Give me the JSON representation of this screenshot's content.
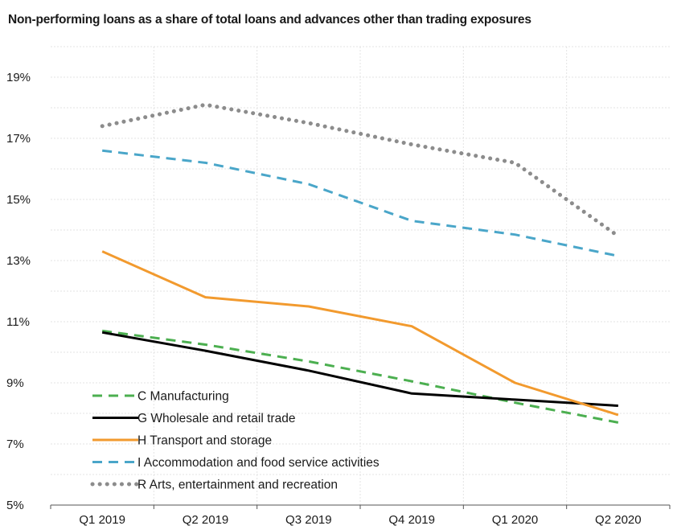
{
  "chart_data": {
    "type": "line",
    "title": "Non-performing loans as a share of total loans and advances other than trading exposures",
    "xlabel": "",
    "ylabel": "",
    "categories": [
      "Q1 2019",
      "Q2 2019",
      "Q3 2019",
      "Q4 2019",
      "Q1 2020",
      "Q2 2020"
    ],
    "y_ticks": [
      "5%",
      "7%",
      "9%",
      "11%",
      "13%",
      "15%",
      "17%",
      "19%"
    ],
    "ylim": [
      5,
      20
    ],
    "grid": true,
    "legend_position": "bottom-left",
    "series": [
      {
        "name": "C Manufacturing",
        "values": [
          10.7,
          10.25,
          9.7,
          9.05,
          8.35,
          7.7
        ],
        "color": "#4caf50",
        "style": "dashed"
      },
      {
        "name": "G Wholesale and retail trade",
        "values": [
          10.65,
          10.05,
          9.4,
          8.65,
          8.45,
          8.25
        ],
        "color": "#000000",
        "style": "solid"
      },
      {
        "name": "H Transport and storage",
        "values": [
          13.3,
          11.8,
          11.5,
          10.85,
          9.0,
          7.95
        ],
        "color": "#f29a2e",
        "style": "solid"
      },
      {
        "name": "I Accommodation and food service activities",
        "values": [
          16.6,
          16.2,
          15.5,
          14.3,
          13.85,
          13.15
        ],
        "color": "#4aa6c9",
        "style": "dashed"
      },
      {
        "name": "R Arts, entertainment and recreation",
        "values": [
          17.4,
          18.1,
          17.5,
          16.8,
          16.2,
          13.8
        ],
        "color": "#8c8c8c",
        "style": "dotted"
      }
    ]
  }
}
